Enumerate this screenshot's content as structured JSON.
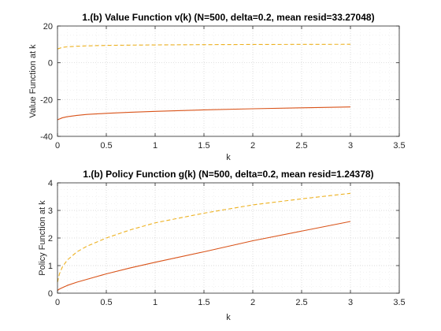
{
  "chart_data": [
    {
      "type": "line",
      "title": "1.(b) Value Function v(k) (N=500, delta=0.2, mean resid=33.27048)",
      "xlabel": "k",
      "ylabel": "Value Function at k",
      "xlim": [
        0,
        3.5
      ],
      "ylim": [
        -40,
        20
      ],
      "xticks": [
        "0",
        "0.5",
        "1",
        "1.5",
        "2",
        "2.5",
        "3",
        "3.5"
      ],
      "yticks": [
        "20",
        "0",
        "-20",
        "-40"
      ],
      "grid": "on (major and minor, dotted)",
      "legend": "none",
      "series": [
        {
          "style": "dashed",
          "color": "#EDB120",
          "x": [
            0,
            0.05,
            0.1,
            0.2,
            0.3,
            0.5,
            0.75,
            1.0,
            1.5,
            2.0,
            2.5,
            3.0
          ],
          "y": [
            7.5,
            8.4,
            8.7,
            9.0,
            9.2,
            9.45,
            9.6,
            9.7,
            9.85,
            9.95,
            10.0,
            10.05
          ]
        },
        {
          "style": "solid",
          "color": "#D95319",
          "x": [
            0,
            0.05,
            0.1,
            0.2,
            0.3,
            0.5,
            0.75,
            1.0,
            1.5,
            2.0,
            2.5,
            3.0
          ],
          "y": [
            -31.0,
            -29.9,
            -29.3,
            -28.6,
            -28.1,
            -27.5,
            -26.9,
            -26.4,
            -25.6,
            -25.0,
            -24.5,
            -24.0
          ]
        }
      ]
    },
    {
      "type": "line",
      "title": "1.(b) Policy Function g(k) (N=500, delta=0.2, mean resid=1.24378)",
      "xlabel": "k",
      "ylabel": "Policy Function at k",
      "xlim": [
        0,
        3.5
      ],
      "ylim": [
        0,
        4
      ],
      "xticks": [
        "0",
        "0.5",
        "1",
        "1.5",
        "2",
        "2.5",
        "3",
        "3.5"
      ],
      "yticks": [
        "4",
        "3",
        "2",
        "1",
        "0"
      ],
      "grid": "on (major and minor, dotted)",
      "legend": "none",
      "series": [
        {
          "style": "dashed",
          "color": "#EDB120",
          "x": [
            0,
            0.02,
            0.05,
            0.1,
            0.2,
            0.3,
            0.5,
            0.75,
            1.0,
            1.5,
            2.0,
            2.5,
            3.0
          ],
          "y": [
            0.4,
            0.7,
            0.95,
            1.2,
            1.5,
            1.7,
            2.0,
            2.3,
            2.55,
            2.9,
            3.2,
            3.42,
            3.62
          ]
        },
        {
          "style": "solid",
          "color": "#D95319",
          "x": [
            0,
            0.02,
            0.05,
            0.1,
            0.2,
            0.3,
            0.5,
            0.75,
            1.0,
            1.5,
            2.0,
            2.5,
            3.0
          ],
          "y": [
            0.1,
            0.15,
            0.2,
            0.28,
            0.4,
            0.5,
            0.7,
            0.92,
            1.12,
            1.5,
            1.9,
            2.25,
            2.6
          ]
        }
      ]
    }
  ]
}
